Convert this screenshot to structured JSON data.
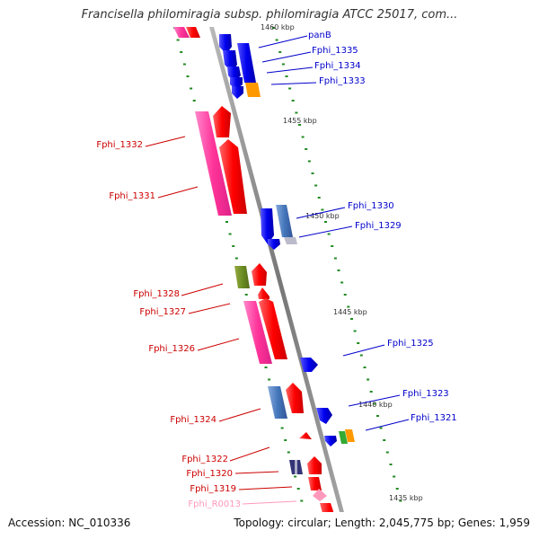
{
  "title": "Francisella philomiragia subsp. philomiragia ATCC 25017, com...",
  "footer": {
    "accession_label": "Accession:",
    "accession": "NC_010336",
    "topology_label": "Topology:",
    "topology": "circular",
    "length_label": "Length:",
    "length": "2,045,775 bp",
    "genes_label": "Genes:",
    "genes": "1,959"
  },
  "colors": {
    "forward_label": "#cc0000",
    "reverse_label": "#0000cc",
    "rna_label": "#ff99bb",
    "backbone": "#888888",
    "tick": "#228b22"
  },
  "scale_labels": [
    "1460 kbp",
    "1455 kbp",
    "1450 kbp",
    "1445 kbp",
    "1440 kbp",
    "1435 kbp"
  ],
  "genes_right": [
    {
      "label": "panB"
    },
    {
      "label": "Fphi_1335"
    },
    {
      "label": "Fphi_1334"
    },
    {
      "label": "Fphi_1333"
    },
    {
      "label": "Fphi_1330"
    },
    {
      "label": "Fphi_1329"
    },
    {
      "label": "Fphi_1325"
    },
    {
      "label": "Fphi_1323"
    },
    {
      "label": "Fphi_1321"
    }
  ],
  "genes_left": [
    {
      "label": "Fphi_1332"
    },
    {
      "label": "Fphi_1331"
    },
    {
      "label": "Fphi_1328"
    },
    {
      "label": "Fphi_1327"
    },
    {
      "label": "Fphi_1326"
    },
    {
      "label": "Fphi_1324"
    },
    {
      "label": "Fphi_1322"
    },
    {
      "label": "Fphi_1320"
    },
    {
      "label": "Fphi_1319"
    },
    {
      "label": "Fphi_R0013"
    }
  ]
}
